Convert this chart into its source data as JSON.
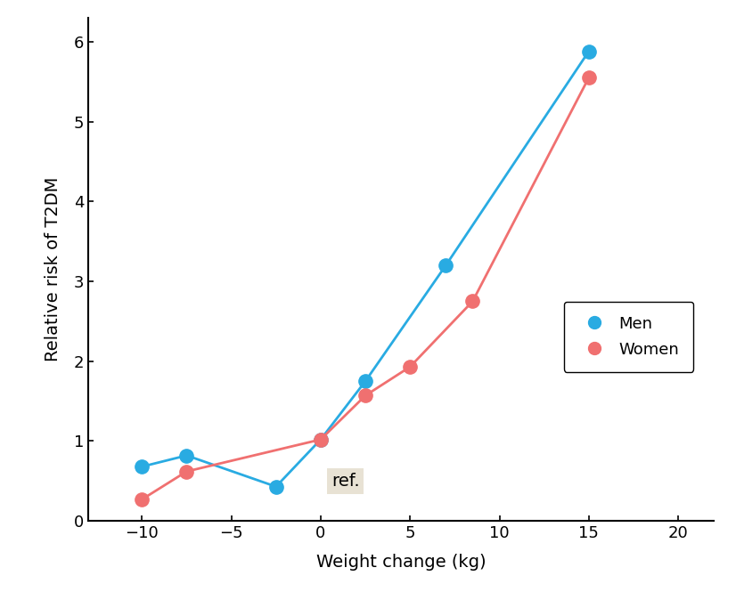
{
  "men_x": [
    -10,
    -7.5,
    -2.5,
    0,
    2.5,
    7,
    15
  ],
  "men_y": [
    0.68,
    0.82,
    0.43,
    1.02,
    1.75,
    3.2,
    5.88
  ],
  "women_x": [
    -10,
    -7.5,
    0,
    2.5,
    5,
    8.5,
    15
  ],
  "women_y": [
    0.27,
    0.62,
    1.02,
    1.57,
    1.93,
    2.75,
    5.55
  ],
  "men_color": "#29ABE2",
  "women_color": "#F07070",
  "xlabel": "Weight change (kg)",
  "ylabel": "Relative risk of T2DM",
  "xlim": [
    -13,
    22
  ],
  "ylim": [
    0,
    6.3
  ],
  "xticks": [
    -10,
    -5,
    0,
    5,
    10,
    15,
    20
  ],
  "yticks": [
    0,
    1,
    2,
    3,
    4,
    5,
    6
  ],
  "ref_label": "ref.",
  "ref_bg": "#E8E2D4",
  "legend_men": "Men",
  "legend_women": "Women",
  "marker_size": 11,
  "line_width": 2.0,
  "font_size_ticks": 13,
  "font_size_labels": 14,
  "font_size_legend": 13
}
